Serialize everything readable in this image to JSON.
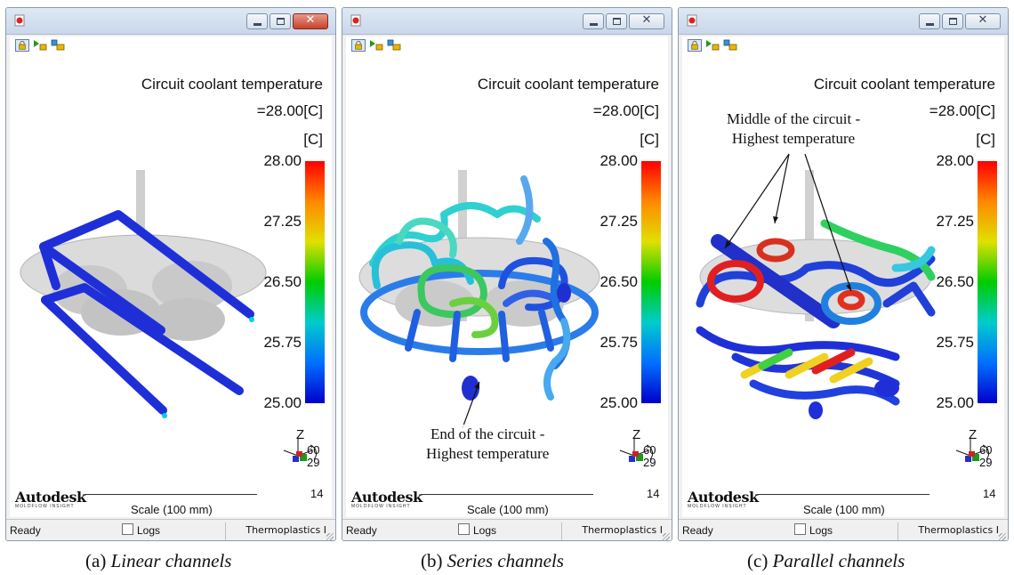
{
  "panels": [
    {
      "id": "a",
      "legend": {
        "title": "Circuit coolant temperature",
        "value": "=28.00[C]",
        "unit": "[C]",
        "ticks": [
          "28.00",
          "27.25",
          "26.50",
          "25.75",
          "25.00"
        ]
      },
      "axes": {
        "z": "Z",
        "n1": "60",
        "n2": "29",
        "n3": "14"
      },
      "branding": {
        "name": "Autodesk",
        "sub": "MOLDFLOW INSIGHT",
        "scale": "Scale (100 mm)"
      },
      "status": {
        "ready": "Ready",
        "logs": "Logs",
        "mode": "Thermoplastics I"
      },
      "caption": {
        "letter": "(a)",
        "text": "Linear channels"
      }
    },
    {
      "id": "b",
      "legend": {
        "title": "Circuit coolant temperature",
        "value": "=28.00[C]",
        "unit": "[C]",
        "ticks": [
          "28.00",
          "27.25",
          "26.50",
          "25.75",
          "25.00"
        ]
      },
      "axes": {
        "z": "Z",
        "n1": "60",
        "n2": "29",
        "n3": "14"
      },
      "branding": {
        "name": "Autodesk",
        "sub": "MOLDFLOW INSIGHT",
        "scale": "Scale (100 mm)"
      },
      "status": {
        "ready": "Ready",
        "logs": "Logs",
        "mode": "Thermoplastics I"
      },
      "annotation": {
        "line1": "End of the circuit -",
        "line2": "Highest temperature"
      },
      "caption": {
        "letter": "(b)",
        "text": "Series channels"
      }
    },
    {
      "id": "c",
      "legend": {
        "title": "Circuit coolant temperature",
        "value": "=28.00[C]",
        "unit": "[C]",
        "ticks": [
          "28.00",
          "27.25",
          "26.50",
          "25.75",
          "25.00"
        ]
      },
      "axes": {
        "z": "Z",
        "n1": "60",
        "n2": "29",
        "n3": "14"
      },
      "branding": {
        "name": "Autodesk",
        "sub": "MOLDFLOW INSIGHT",
        "scale": "Scale (100 mm)"
      },
      "status": {
        "ready": "Ready",
        "logs": "Logs",
        "mode": "Thermoplastics I"
      },
      "annotation": {
        "line1": "Middle of the circuit -",
        "line2": "Highest temperature"
      },
      "caption": {
        "letter": "(c)",
        "text": "Parallel channels"
      }
    }
  ],
  "icons": {
    "app": "moldflow-app-icon",
    "toolbar": [
      "lock-view-icon",
      "play-animation-icon",
      "layers-icon"
    ],
    "window": [
      "minimize-icon",
      "maximize-icon",
      "close-icon"
    ]
  },
  "colors": {
    "hot": "#ff0000",
    "mid": "#00cc00",
    "cold": "#0000cc",
    "titlebar": "#cfdcec",
    "close_active": "#c8422c"
  }
}
